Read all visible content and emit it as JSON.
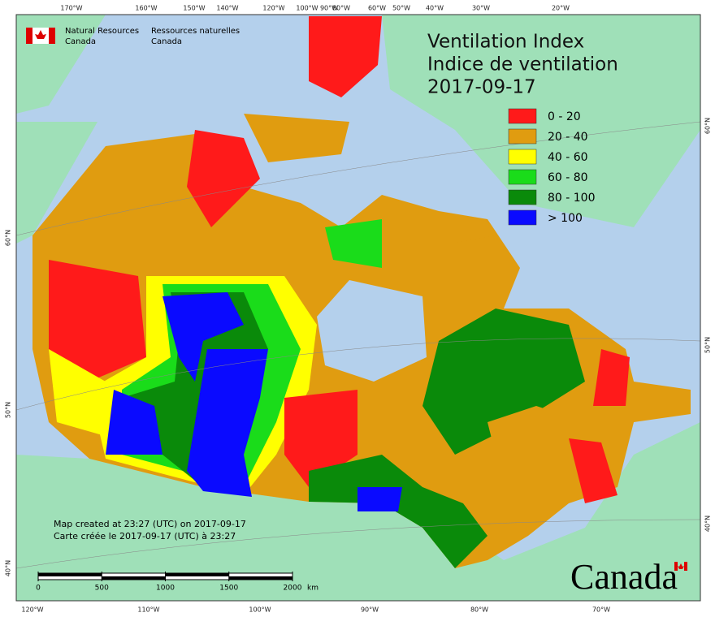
{
  "agency": {
    "en": [
      "Natural Resources",
      "Canada"
    ],
    "fr": [
      "Ressources naturelles",
      "Canada"
    ]
  },
  "title": [
    "Ventilation Index",
    "Indice de ventilation",
    "2017-09-17"
  ],
  "legend": [
    {
      "label": "0 - 20",
      "color": "#ff1a1a"
    },
    {
      "label": "20 - 40",
      "color": "#e09c10"
    },
    {
      "label": "40 - 60",
      "color": "#ffff00"
    },
    {
      "label": "60 - 80",
      "color": "#1adc1a"
    },
    {
      "label": "80 - 100",
      "color": "#0a8a0a"
    },
    {
      "label": "> 100",
      "color": "#0a0aff"
    }
  ],
  "top_longitudes": [
    "170°W",
    "160°W",
    "150°W",
    "140°W",
    "120°W",
    "100°W",
    "90°W",
    "80°W",
    "60°W",
    "50°W",
    "40°W",
    "30°W",
    "20°W"
  ],
  "bottom_longitudes": [
    "120°W",
    "110°W",
    "100°W",
    "90°W",
    "80°W",
    "70°W"
  ],
  "left_latitudes": [
    "60°N",
    "50°N",
    "40°N"
  ],
  "right_latitudes": [
    "60°N",
    "50°N",
    "40°N"
  ],
  "credits": [
    "Map created at 23:27 (UTC) on 2017-09-17",
    "Carte créée le 2017-09-17 (UTC) à 23:27"
  ],
  "scale": {
    "ticks": [
      0,
      500,
      1000,
      1500,
      2000
    ],
    "unit": "km"
  },
  "wordmark": "Canada"
}
